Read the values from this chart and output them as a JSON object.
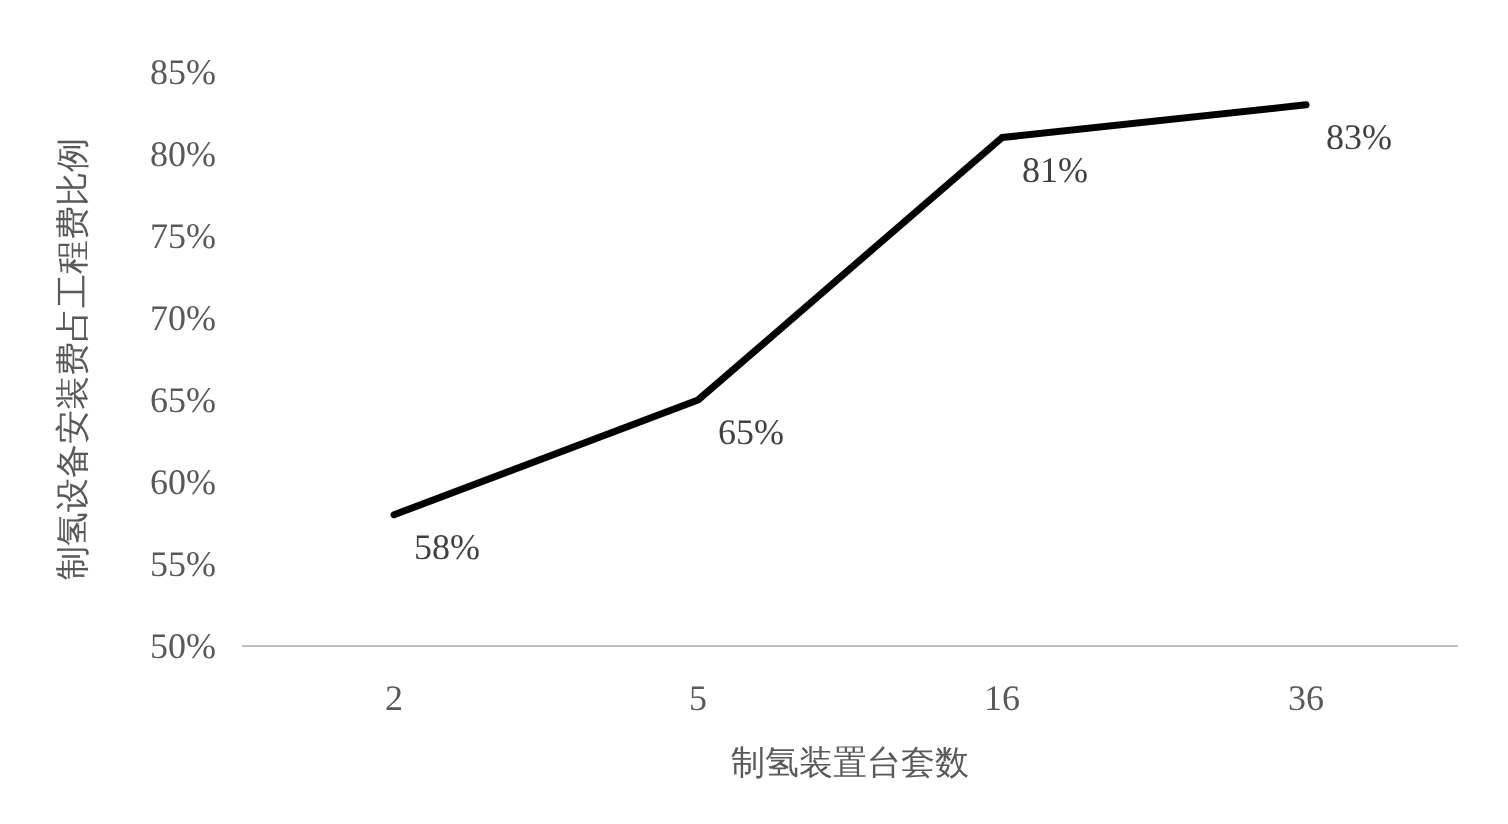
{
  "chart_data": {
    "type": "line",
    "xlabel": "制氢装置台套数",
    "ylabel": "制氢设备安装费占工程费比例",
    "categories": [
      "2",
      "5",
      "16",
      "36"
    ],
    "series": [
      {
        "color": "#000000",
        "values": [
          58,
          65,
          81,
          83
        ],
        "value_labels": [
          "58%",
          "65%",
          "81%",
          "83%"
        ]
      }
    ],
    "ylim": [
      50,
      85
    ],
    "yticks": [
      {
        "value": 50,
        "label": "50%"
      },
      {
        "value": 55,
        "label": "55%"
      },
      {
        "value": 60,
        "label": "60%"
      },
      {
        "value": 65,
        "label": "65%"
      },
      {
        "value": 70,
        "label": "70%"
      },
      {
        "value": 75,
        "label": "75%"
      },
      {
        "value": 80,
        "label": "80%"
      },
      {
        "value": 85,
        "label": "85%"
      }
    ],
    "grid": false
  }
}
